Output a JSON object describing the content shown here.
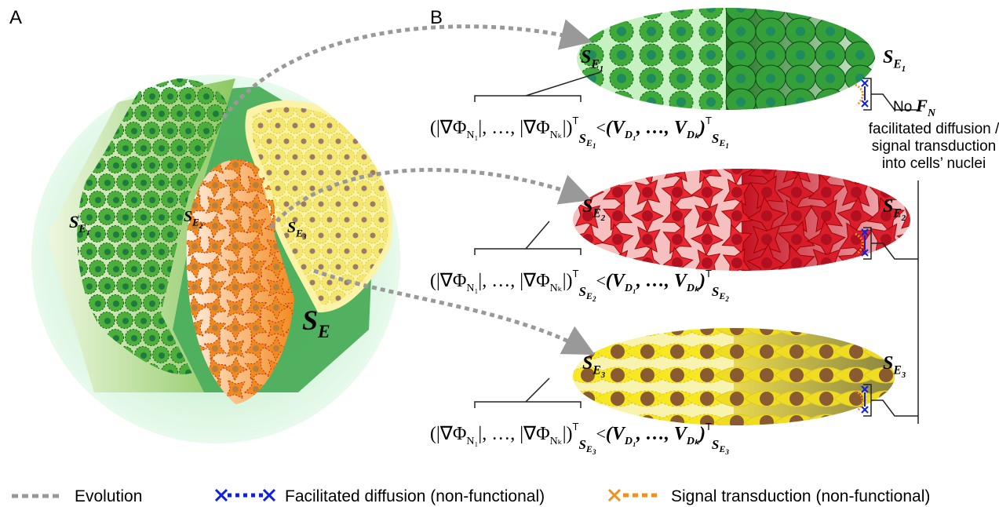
{
  "panels": {
    "a": "A",
    "b": "B"
  },
  "panel_a": {
    "labels": [
      {
        "base": "S",
        "sub": "E",
        "subsub": "1"
      },
      {
        "base": "S",
        "sub": "E",
        "subsub": "2"
      },
      {
        "base": "S",
        "sub": "E",
        "subsub": "3"
      },
      {
        "base": "S",
        "sub": "E"
      }
    ]
  },
  "panel_b": {
    "rows": [
      {
        "label_left": {
          "base": "S",
          "sub": "E",
          "subsub": "1"
        },
        "label_right": {
          "base": "S",
          "sub": "E",
          "subsub": "1"
        },
        "formula": {
          "lhs": [
            "(|∇Φ",
            "N₁",
            "|, …, |∇Φ",
            "Nₖ",
            "|)"
          ],
          "sup": "T",
          "sub": {
            "base": "S",
            "sub": "E",
            "subsub": "1"
          },
          "op": "<",
          "rhs": [
            "(V",
            "D₁",
            ", …, V",
            "Dₖ",
            ")"
          ],
          "rhs_sup": "T",
          "rhs_sub": {
            "base": "S",
            "sub": "E",
            "subsub": "1"
          }
        }
      },
      {
        "label_left": {
          "base": "S",
          "sub": "E",
          "subsub": "2"
        },
        "label_right": {
          "base": "S",
          "sub": "E",
          "subsub": "2"
        },
        "formula": {
          "lhs": [
            "(|∇Φ",
            "N₁",
            "|, …, |∇Φ",
            "Nₖ",
            "|)"
          ],
          "sup": "T",
          "sub": {
            "base": "S",
            "sub": "E",
            "subsub": "2"
          },
          "op": "<",
          "rhs": [
            "(V",
            "D₁",
            ", …, V",
            "Dₖ",
            ")"
          ],
          "rhs_sup": "T",
          "rhs_sub": {
            "base": "S",
            "sub": "E",
            "subsub": "2"
          }
        }
      },
      {
        "label_left": {
          "base": "S",
          "sub": "E",
          "subsub": "3"
        },
        "label_right": {
          "base": "S",
          "sub": "E",
          "subsub": "3"
        },
        "formula": {
          "lhs": [
            "(|∇Φ",
            "N₁",
            "|, …, |∇Φ",
            "Nₖ",
            "|)"
          ],
          "sup": "T",
          "sub": {
            "base": "S",
            "sub": "E",
            "subsub": "3"
          },
          "op": "<",
          "rhs": [
            "(V",
            "D₁",
            ", …, V",
            "Dₖ",
            ")"
          ],
          "rhs_sup": "T",
          "rhs_sub": {
            "base": "S",
            "sub": "E",
            "subsub": "3"
          }
        }
      }
    ]
  },
  "note": {
    "prefix": "No",
    "symbol": {
      "base": "F",
      "sub": "N⃗"
    },
    "lines": [
      "facilitated diffusion /",
      "signal transduction",
      "into cells’ nuclei"
    ]
  },
  "legend": [
    "Evolution",
    "Facilitated diffusion (non-functional)",
    "Signal transduction (non-functional)"
  ]
}
